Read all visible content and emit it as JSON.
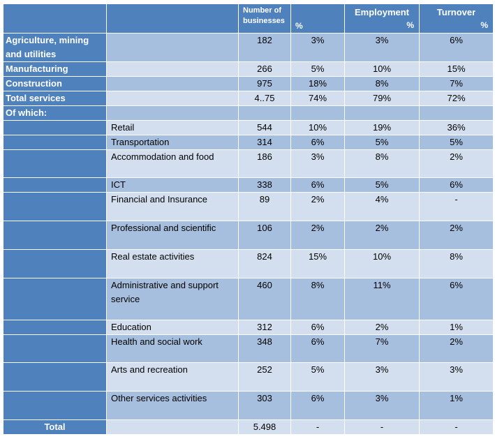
{
  "header": {
    "businesses_label": "Number of businesses",
    "pct_label": "%",
    "employment_label": "Employment",
    "employment_pct": "%",
    "turnover_label": "Turnover",
    "turnover_pct": "%"
  },
  "rows": [
    {
      "sector": "Agriculture, mining and utilities",
      "sub": "",
      "businesses": "182",
      "pct": "3%",
      "employment": "3%",
      "turnover": "6%"
    },
    {
      "sector": "Manufacturing",
      "sub": "",
      "businesses": "266",
      "pct": "5%",
      "employment": "10%",
      "turnover": "15%"
    },
    {
      "sector": "Construction",
      "sub": "",
      "businesses": "975",
      "pct": "18%",
      "employment": "8%",
      "turnover": "7%"
    },
    {
      "sector": "Total services",
      "sub": "",
      "businesses": "4..75",
      "pct": "74%",
      "employment": "79%",
      "turnover": "72%"
    },
    {
      "sector": "Of which:",
      "sub": "",
      "businesses": "",
      "pct": "",
      "employment": "",
      "turnover": ""
    },
    {
      "sector": "",
      "sub": "Retail",
      "businesses": "544",
      "pct": "10%",
      "employment": "19%",
      "turnover": "36%"
    },
    {
      "sector": "",
      "sub": "Transportation",
      "businesses": "314",
      "pct": "6%",
      "employment": "5%",
      "turnover": "5%"
    },
    {
      "sector": "",
      "sub": "Accommodation and food",
      "businesses": "186",
      "pct": "3%",
      "employment": "8%",
      "turnover": "2%"
    },
    {
      "sector": "",
      "sub": "ICT",
      "businesses": "338",
      "pct": "6%",
      "employment": "5%",
      "turnover": "6%"
    },
    {
      "sector": "",
      "sub": "Financial and Insurance",
      "businesses": "89",
      "pct": "2%",
      "employment": "4%",
      "turnover": "-"
    },
    {
      "sector": "",
      "sub": "Professional and scientific",
      "businesses": "106",
      "pct": "2%",
      "employment": "2%",
      "turnover": "2%"
    },
    {
      "sector": "",
      "sub": "Real estate activities",
      "businesses": "824",
      "pct": "15%",
      "employment": "10%",
      "turnover": "8%"
    },
    {
      "sector": "",
      "sub": "Administrative and support service",
      "businesses": "460",
      "pct": "8%",
      "employment": "11%",
      "turnover": "6%"
    },
    {
      "sector": "",
      "sub": "Education",
      "businesses": "312",
      "pct": "6%",
      "employment": "2%",
      "turnover": "1%"
    },
    {
      "sector": "",
      "sub": "Health and social work",
      "businesses": "348",
      "pct": "6%",
      "employment": "7%",
      "turnover": "2%"
    },
    {
      "sector": "",
      "sub": "Arts and recreation",
      "businesses": "252",
      "pct": "5%",
      "employment": "3%",
      "turnover": "3%"
    },
    {
      "sector": "",
      "sub": "Other services activities",
      "businesses": "303",
      "pct": "6%",
      "employment": "3%",
      "turnover": "1%"
    }
  ],
  "total": {
    "label": "Total",
    "sub": "",
    "businesses": "5.498",
    "pct": "-",
    "employment": "-",
    "turnover": "-"
  }
}
